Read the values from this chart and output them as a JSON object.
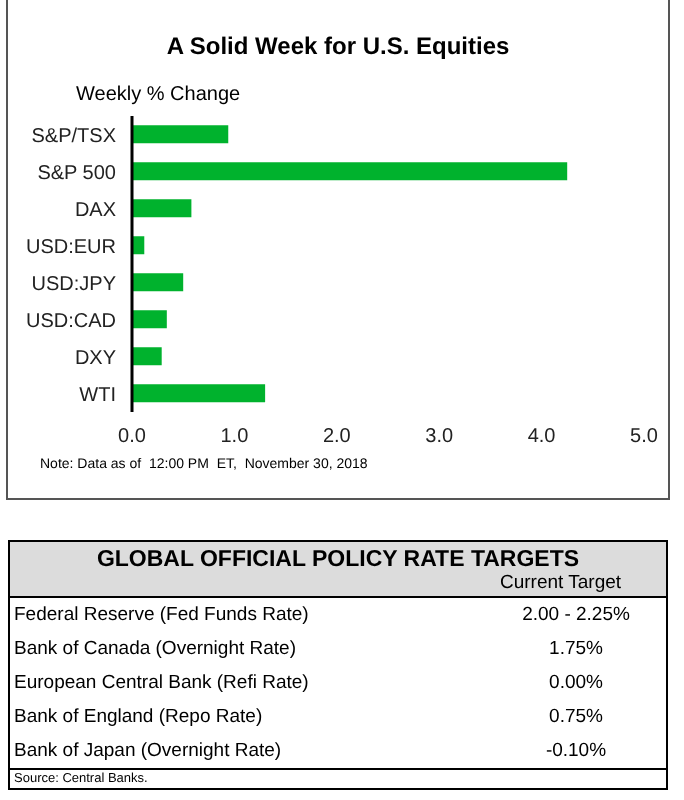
{
  "chart_data": [
    {
      "type": "bar",
      "orientation": "horizontal",
      "title": "A Solid Week for U.S. Equities",
      "subtitle": "Weekly % Change",
      "categories": [
        "S&P/TSX",
        "S&P 500",
        "DAX",
        "USD:EUR",
        "USD:JPY",
        "USD:CAD",
        "DXY",
        "WTI"
      ],
      "values": [
        0.94,
        4.25,
        0.58,
        0.12,
        0.5,
        0.34,
        0.29,
        1.3
      ],
      "color": "#00b22d",
      "xlim": [
        0,
        5
      ],
      "xticks": [
        {
          "value": 0,
          "label": "0.0"
        },
        {
          "value": 1,
          "label": "1.0"
        },
        {
          "value": 2,
          "label": "2.0"
        },
        {
          "value": 3,
          "label": "3.0"
        },
        {
          "value": 4,
          "label": "4.0"
        },
        {
          "value": 5,
          "label": "5.0"
        }
      ],
      "grid": false,
      "annotations": [
        "Note: Data as of  12:00 PM  ET,  November 30, 2018"
      ]
    },
    {
      "type": "other",
      "title": "GLOBAL OFFICIAL POLICY RATE TARGETS",
      "subtitle": "Current Target",
      "categories": [
        "Federal Reserve (Fed Funds Rate)",
        "Bank of Canada (Overnight Rate)",
        "European Central Bank (Refi Rate)",
        "Bank of England (Repo Rate)",
        "Bank of Japan (Overnight Rate)"
      ],
      "value_labels": [
        "2.00 - 2.25%",
        "1.75%",
        "0.00%",
        "0.75%",
        "-0.10%"
      ],
      "annotations": [
        "Source: Central Banks."
      ]
    }
  ]
}
